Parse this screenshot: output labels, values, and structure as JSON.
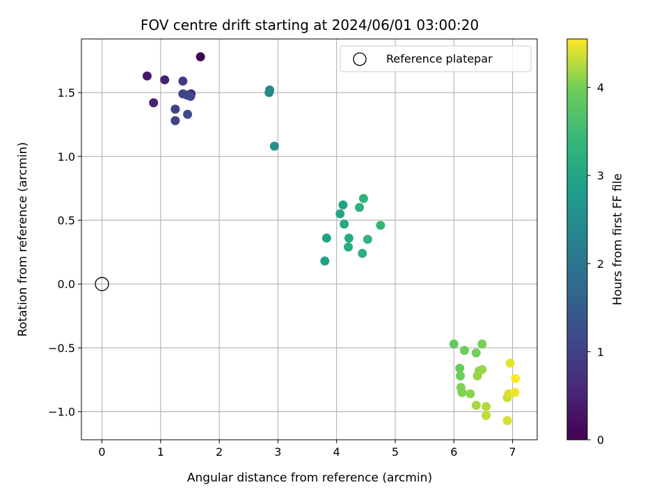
{
  "chart_data": {
    "type": "scatter",
    "title": "FOV centre drift starting at 2024/06/01 03:00:20",
    "xlabel": "Angular distance from reference (arcmin)",
    "ylabel": "Rotation from reference (arcmin)",
    "xlim": [
      -0.35,
      7.42
    ],
    "ylim": [
      -1.22,
      1.92
    ],
    "xticks": [
      0,
      1,
      2,
      3,
      4,
      5,
      6,
      7
    ],
    "xtick_labels": [
      "0",
      "1",
      "2",
      "3",
      "4",
      "5",
      "6",
      "7"
    ],
    "yticks": [
      -1.0,
      -0.5,
      0.0,
      0.5,
      1.0,
      1.5
    ],
    "ytick_labels": [
      "−1.0",
      "−0.5",
      "0.0",
      "0.5",
      "1.0",
      "1.5"
    ],
    "grid": true,
    "legend": {
      "placement": "top-right",
      "entries": [
        {
          "label": "Reference platepar",
          "marker": "open-circle"
        }
      ]
    },
    "reference_point": {
      "x": 0,
      "y": 0
    },
    "colorbar": {
      "label": "Hours from first FF file",
      "colormap": "viridis",
      "range": [
        0,
        4.55
      ],
      "ticks": [
        0,
        1,
        2,
        3,
        4
      ],
      "tick_labels": [
        "0",
        "1",
        "2",
        "3",
        "4"
      ]
    },
    "series": [
      {
        "points": [
          {
            "x": 1.68,
            "y": 1.78,
            "c": 0.0
          },
          {
            "x": 0.77,
            "y": 1.63,
            "c": 0.35
          },
          {
            "x": 1.07,
            "y": 1.6,
            "c": 0.45
          },
          {
            "x": 0.88,
            "y": 1.42,
            "c": 0.5
          },
          {
            "x": 1.52,
            "y": 1.49,
            "c": 0.55
          },
          {
            "x": 1.38,
            "y": 1.59,
            "c": 0.9
          },
          {
            "x": 1.45,
            "y": 1.48,
            "c": 0.95
          },
          {
            "x": 1.25,
            "y": 1.37,
            "c": 1.0
          },
          {
            "x": 1.25,
            "y": 1.28,
            "c": 1.05
          },
          {
            "x": 1.38,
            "y": 1.49,
            "c": 1.1
          },
          {
            "x": 1.51,
            "y": 1.47,
            "c": 1.15
          },
          {
            "x": 1.46,
            "y": 1.33,
            "c": 1.2
          },
          {
            "x": 2.86,
            "y": 1.52,
            "c": 2.4
          },
          {
            "x": 2.85,
            "y": 1.5,
            "c": 2.45
          },
          {
            "x": 2.94,
            "y": 1.08,
            "c": 2.55
          },
          {
            "x": 3.8,
            "y": 0.18,
            "c": 2.9
          },
          {
            "x": 3.83,
            "y": 0.36,
            "c": 2.95
          },
          {
            "x": 4.11,
            "y": 0.62,
            "c": 2.95
          },
          {
            "x": 4.06,
            "y": 0.55,
            "c": 3.0
          },
          {
            "x": 4.13,
            "y": 0.47,
            "c": 3.05
          },
          {
            "x": 4.21,
            "y": 0.36,
            "c": 3.1
          },
          {
            "x": 4.2,
            "y": 0.29,
            "c": 3.15
          },
          {
            "x": 4.44,
            "y": 0.24,
            "c": 3.2
          },
          {
            "x": 4.39,
            "y": 0.6,
            "c": 3.25
          },
          {
            "x": 4.46,
            "y": 0.67,
            "c": 3.3
          },
          {
            "x": 4.53,
            "y": 0.35,
            "c": 3.35
          },
          {
            "x": 4.75,
            "y": 0.46,
            "c": 3.4
          },
          {
            "x": 6.0,
            "y": -0.47,
            "c": 3.85
          },
          {
            "x": 6.1,
            "y": -0.66,
            "c": 3.9
          },
          {
            "x": 6.11,
            "y": -0.72,
            "c": 3.95
          },
          {
            "x": 6.18,
            "y": -0.52,
            "c": 3.95
          },
          {
            "x": 6.38,
            "y": -0.54,
            "c": 4.0
          },
          {
            "x": 6.48,
            "y": -0.47,
            "c": 4.0
          },
          {
            "x": 6.12,
            "y": -0.81,
            "c": 4.05
          },
          {
            "x": 6.14,
            "y": -0.85,
            "c": 4.05
          },
          {
            "x": 6.28,
            "y": -0.86,
            "c": 4.1
          },
          {
            "x": 6.43,
            "y": -0.68,
            "c": 4.1
          },
          {
            "x": 6.48,
            "y": -0.67,
            "c": 4.15
          },
          {
            "x": 6.4,
            "y": -0.72,
            "c": 4.15
          },
          {
            "x": 6.38,
            "y": -0.95,
            "c": 4.2
          },
          {
            "x": 6.55,
            "y": -0.96,
            "c": 4.25
          },
          {
            "x": 6.55,
            "y": -1.03,
            "c": 4.3
          },
          {
            "x": 6.91,
            "y": -0.89,
            "c": 4.35
          },
          {
            "x": 6.93,
            "y": -0.86,
            "c": 4.4
          },
          {
            "x": 6.91,
            "y": -1.07,
            "c": 4.4
          },
          {
            "x": 6.96,
            "y": -0.62,
            "c": 4.45
          },
          {
            "x": 7.04,
            "y": -0.85,
            "c": 4.5
          },
          {
            "x": 7.05,
            "y": -0.74,
            "c": 4.55
          }
        ]
      }
    ]
  }
}
